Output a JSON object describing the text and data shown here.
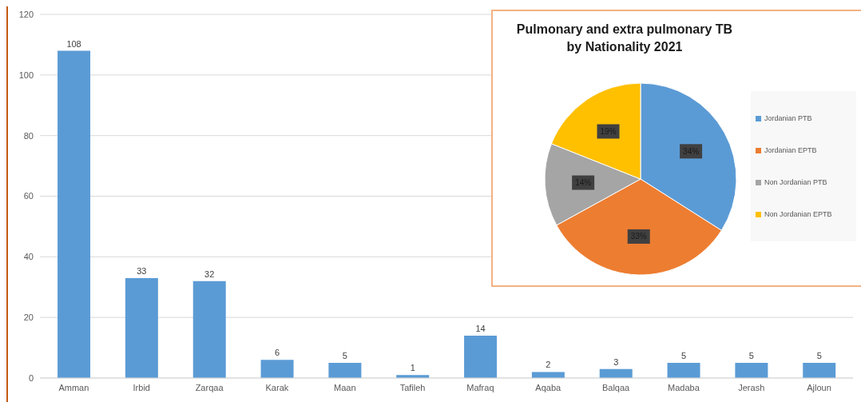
{
  "chart_data": [
    {
      "type": "bar",
      "categories": [
        "Amman",
        "Irbid",
        "Zarqaa",
        "Karak",
        "Maan",
        "Tafileh",
        "Mafraq",
        "Aqaba",
        "Balqaa",
        "Madaba",
        "Jerash",
        "Ajloun"
      ],
      "values": [
        108,
        33,
        32,
        6,
        5,
        1,
        14,
        2,
        3,
        5,
        5,
        5
      ],
      "color": "#5b9bd5",
      "ylim": [
        0,
        120
      ],
      "yticks": [
        0,
        20,
        40,
        60,
        80,
        100,
        120
      ],
      "grid": "y",
      "data_labels": true
    },
    {
      "type": "pie",
      "title": "Pulmonary and extra pulmonary TB\nby Nationality 2021",
      "categories": [
        "Jordanian PTB",
        "Jordanian EPTB",
        "Non Jordanian PTB",
        "Non Jordanian EPTB"
      ],
      "values": [
        34,
        33,
        14,
        19
      ],
      "colors": [
        "#5b9bd5",
        "#ed7d31",
        "#a5a5a5",
        "#ffc000"
      ],
      "value_labels": [
        "34%",
        "33%",
        "14%",
        "19%"
      ],
      "legend": "right"
    }
  ]
}
